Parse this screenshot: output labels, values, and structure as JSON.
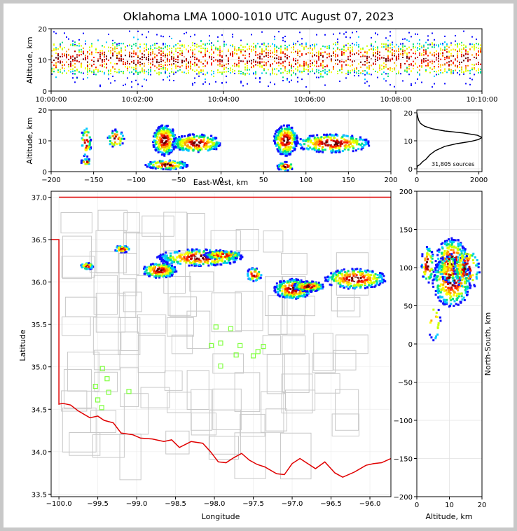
{
  "title": "Oklahoma LMA 1000-1010 UTC August 07, 2023",
  "colors": {
    "state_border": "#e00000",
    "county_lines": "#c8c8c8",
    "stations": "#80ff40",
    "density_scale": [
      "#1010ff",
      "#00c8ff",
      "#00e080",
      "#c8ff00",
      "#ffff00",
      "#ffa000",
      "#ff2000",
      "#c00000",
      "#600000",
      "#ffffff"
    ]
  },
  "chart_data": [
    {
      "panel": "altitude-time",
      "type": "heatmap",
      "ylabel": "Altitude, km",
      "xlim": [
        "10:00:00",
        "10:10:00"
      ],
      "ylim": [
        0,
        20
      ],
      "xticks": [
        "10:00:00",
        "10:02:00",
        "10:04:00",
        "10:06:00",
        "10:08:00",
        "10:10:00"
      ],
      "yticks": [
        "0",
        "10",
        "20"
      ],
      "peak_altitude_km": 10.5
    },
    {
      "panel": "east-west-altitude",
      "type": "heatmap",
      "xlabel": "East-West, km",
      "ylabel": "Altitude, km",
      "xlim": [
        -200,
        200
      ],
      "ylim": [
        0,
        20
      ],
      "xticks": [
        "−200",
        "−150",
        "−100",
        "−50",
        "0",
        "50",
        "100",
        "150",
        "200"
      ],
      "yticks": [
        "0",
        "10",
        "20"
      ],
      "cores_km": [
        {
          "x": -68,
          "z": 10.5
        },
        {
          "x": 75,
          "z": 10.5
        },
        {
          "x": -68,
          "z": 2.5
        }
      ]
    },
    {
      "panel": "altitude-histogram",
      "type": "line",
      "xlim": [
        0,
        2100
      ],
      "ylim": [
        0,
        20
      ],
      "xticks": [
        "0",
        "2000"
      ],
      "yticks": [
        "0",
        "10",
        "20"
      ],
      "annotation": "31,805 sources",
      "x": [
        0,
        20,
        100,
        180,
        300,
        420,
        600,
        900,
        1300,
        1750,
        2000,
        2100,
        1950,
        1500,
        900,
        500,
        250,
        120,
        60,
        30,
        10,
        0
      ],
      "y": [
        0,
        1,
        1.5,
        2.5,
        3.5,
        5,
        6.5,
        8,
        9,
        9.8,
        10.5,
        11.2,
        12,
        12.8,
        13.5,
        14.3,
        15.2,
        16.2,
        17.3,
        18.5,
        19.5,
        20
      ]
    },
    {
      "panel": "plan-view",
      "type": "heatmap",
      "xlabel": "Longitude",
      "ylabel": "Latitude",
      "xlim": [
        -100.1,
        -95.73
      ],
      "ylim": [
        33.47,
        37.07
      ],
      "xticks": [
        "−100.0",
        "−99.5",
        "−99.0",
        "−98.5",
        "−98.0",
        "−97.5",
        "−97.0",
        "−96.5",
        "−96.0"
      ],
      "yticks": [
        "33.5",
        "34.0",
        "34.5",
        "35.0",
        "35.5",
        "36.0",
        "36.5",
        "37.0"
      ],
      "stations": [
        [
          -97.98,
          35.47
        ],
        [
          -97.79,
          35.45
        ],
        [
          -98.04,
          35.25
        ],
        [
          -97.92,
          35.28
        ],
        [
          -97.67,
          35.25
        ],
        [
          -97.37,
          35.24
        ],
        [
          -97.44,
          35.18
        ],
        [
          -97.72,
          35.14
        ],
        [
          -97.5,
          35.13
        ],
        [
          -97.92,
          35.01
        ],
        [
          -99.44,
          34.98
        ],
        [
          -99.38,
          34.86
        ],
        [
          -99.53,
          34.77
        ],
        [
          -99.36,
          34.7
        ],
        [
          -99.1,
          34.71
        ],
        [
          -99.5,
          34.61
        ],
        [
          -99.45,
          34.52
        ]
      ]
    },
    {
      "panel": "north-south-altitude",
      "type": "heatmap",
      "xlabel": "Altitude, km",
      "ylabel": "North-South, km",
      "xlim": [
        0,
        20
      ],
      "ylim": [
        -200,
        200
      ],
      "xticks": [
        "0",
        "10",
        "20"
      ],
      "yticks": [
        "−200",
        "−150",
        "−100",
        "−50",
        "0",
        "50",
        "100",
        "150",
        "200"
      ],
      "cores_km": [
        {
          "z": 10.5,
          "y": 110
        },
        {
          "z": 10.5,
          "y": 97
        },
        {
          "z": 10.5,
          "y": 75
        }
      ]
    }
  ]
}
